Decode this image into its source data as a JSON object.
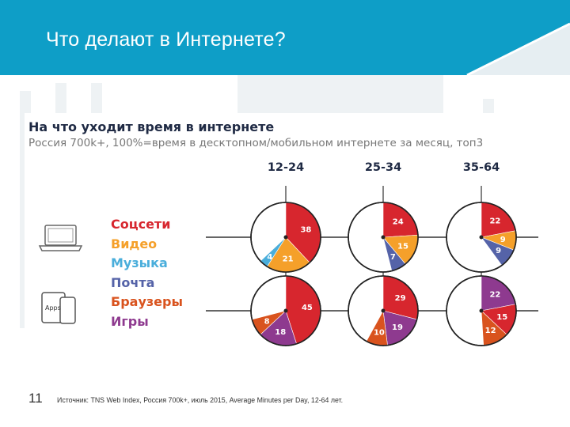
{
  "slide": {
    "title": "Что делают в Интернете?",
    "page_number": "11",
    "source": "Источник: TNS Web Index, Россия 700k+, июль 2015, Average Minutes per Day, 12-64 лет."
  },
  "colors": {
    "header_teal": "#0e9ec7",
    "header_light": "#e6eef2",
    "Соцсети": "#d7262e",
    "Видео": "#f5a02a",
    "Музыка": "#4aaedb",
    "Почта": "#5563a8",
    "Браузеры": "#d9531e",
    "Игры": "#8e3a8f"
  },
  "chart_data": {
    "type": "pie",
    "title": "На что уходит время в интернете",
    "subtitle": "Россия 700k+, 100%=время в десктопном/мобильном интернете за месяц, топ3",
    "columns": [
      "12-24",
      "25-34",
      "35-64"
    ],
    "rows": [
      "desktop",
      "mobile"
    ],
    "icons": {
      "desktop": "laptop-icon",
      "mobile": "phone-tablet-icon",
      "mobile_icon_text": "Apps"
    },
    "legend": [
      {
        "label": "Соцсети",
        "color": "#d7262e"
      },
      {
        "label": "Видео",
        "color": "#f5a02a"
      },
      {
        "label": "Музыка",
        "color": "#4aaedb"
      },
      {
        "label": "Почта",
        "color": "#5563a8"
      },
      {
        "label": "Браузеры",
        "color": "#d9531e"
      },
      {
        "label": "Игры",
        "color": "#8e3a8f"
      }
    ],
    "pies": [
      {
        "row": "desktop",
        "column": "12-24",
        "slices": [
          {
            "category": "Соцсети",
            "value": 38
          },
          {
            "category": "Видео",
            "value": 21
          },
          {
            "category": "Музыка",
            "value": 4
          }
        ]
      },
      {
        "row": "desktop",
        "column": "25-34",
        "slices": [
          {
            "category": "Соцсети",
            "value": 24
          },
          {
            "category": "Видео",
            "value": 15
          },
          {
            "category": "Почта",
            "value": 7
          }
        ]
      },
      {
        "row": "desktop",
        "column": "35-64",
        "slices": [
          {
            "category": "Соцсети",
            "value": 22
          },
          {
            "category": "Видео",
            "value": 9
          },
          {
            "category": "Почта",
            "value": 9
          }
        ]
      },
      {
        "row": "mobile",
        "column": "12-24",
        "slices": [
          {
            "category": "Соцсети",
            "value": 45
          },
          {
            "category": "Игры",
            "value": 18
          },
          {
            "category": "Браузеры",
            "value": 8
          }
        ]
      },
      {
        "row": "mobile",
        "column": "25-34",
        "slices": [
          {
            "category": "Соцсети",
            "value": 29
          },
          {
            "category": "Игры",
            "value": 19
          },
          {
            "category": "Браузеры",
            "value": 10
          }
        ]
      },
      {
        "row": "mobile",
        "column": "35-64",
        "slices": [
          {
            "category": "Игры",
            "value": 22
          },
          {
            "category": "Соцсети",
            "value": 15
          },
          {
            "category": "Браузеры",
            "value": 12
          }
        ]
      }
    ]
  }
}
